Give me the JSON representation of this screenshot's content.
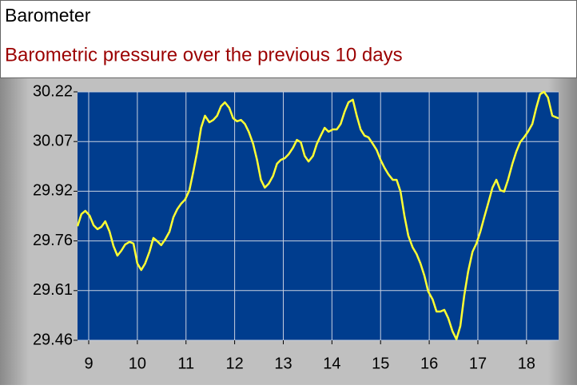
{
  "chart_data": {
    "type": "line",
    "title": "Barometer",
    "subtitle": "Barometric pressure over the previous 10 days",
    "x": [
      8.77,
      8.85,
      8.93,
      9.02,
      9.1,
      9.18,
      9.26,
      9.34,
      9.43,
      9.51,
      9.59,
      9.67,
      9.75,
      9.84,
      9.92,
      10.0,
      10.08,
      10.16,
      10.25,
      10.33,
      10.41,
      10.49,
      10.57,
      10.66,
      10.74,
      10.82,
      10.9,
      10.98,
      11.07,
      11.15,
      11.23,
      11.31,
      11.39,
      11.48,
      11.56,
      11.64,
      11.72,
      11.8,
      11.89,
      11.97,
      12.05,
      12.13,
      12.21,
      12.29,
      12.38,
      12.46,
      12.54,
      12.62,
      12.7,
      12.79,
      12.87,
      12.95,
      13.03,
      13.11,
      13.2,
      13.28,
      13.36,
      13.44,
      13.52,
      13.61,
      13.69,
      13.77,
      13.85,
      13.93,
      14.02,
      14.1,
      14.18,
      14.26,
      14.34,
      14.43,
      14.51,
      14.59,
      14.67,
      14.75,
      14.84,
      14.92,
      15.0,
      15.08,
      15.16,
      15.25,
      15.33,
      15.41,
      15.49,
      15.57,
      15.66,
      15.74,
      15.82,
      15.9,
      15.98,
      16.07,
      16.15,
      16.23,
      16.31,
      16.39,
      16.48,
      16.56,
      16.64,
      16.72,
      16.8,
      16.89,
      16.97,
      17.05,
      17.13,
      17.21,
      17.3,
      17.38,
      17.46,
      17.54,
      17.62,
      17.71,
      17.79,
      17.87,
      17.95,
      18.03,
      18.12,
      18.2,
      18.28,
      18.36,
      18.44,
      18.53,
      18.66
    ],
    "series": [
      {
        "color": "#ffff33",
        "values": [
          29.809,
          29.846,
          29.856,
          29.841,
          29.812,
          29.8,
          29.807,
          29.824,
          29.792,
          29.748,
          29.719,
          29.734,
          29.753,
          29.761,
          29.756,
          29.695,
          29.675,
          29.695,
          29.731,
          29.773,
          29.763,
          29.751,
          29.768,
          29.792,
          29.836,
          29.861,
          29.878,
          29.89,
          29.919,
          29.976,
          30.037,
          30.11,
          30.147,
          30.127,
          30.134,
          30.147,
          30.176,
          30.188,
          30.171,
          30.139,
          30.13,
          30.134,
          30.122,
          30.098,
          30.061,
          30.012,
          29.951,
          29.927,
          29.939,
          29.963,
          30.0,
          30.012,
          30.017,
          30.029,
          30.049,
          30.073,
          30.066,
          30.024,
          30.007,
          30.024,
          30.061,
          30.086,
          30.11,
          30.098,
          30.105,
          30.105,
          30.122,
          30.159,
          30.188,
          30.196,
          30.147,
          30.105,
          30.086,
          30.081,
          30.061,
          30.042,
          30.012,
          29.988,
          29.968,
          29.951,
          29.951,
          29.915,
          29.841,
          29.78,
          29.744,
          29.724,
          29.695,
          29.658,
          29.609,
          29.585,
          29.548,
          29.548,
          29.553,
          29.528,
          29.487,
          29.463,
          29.504,
          29.597,
          29.67,
          29.731,
          29.756,
          29.792,
          29.836,
          29.878,
          29.927,
          29.951,
          29.919,
          29.915,
          29.951,
          30.0,
          30.037,
          30.066,
          30.081,
          30.098,
          30.122,
          30.171,
          30.213,
          30.22,
          30.203,
          30.147,
          30.139
        ]
      }
    ],
    "xlim": [
      8.77,
      18.66
    ],
    "xticks": [
      9,
      10,
      11,
      12,
      13,
      14,
      15,
      16,
      17,
      18
    ],
    "ylim": [
      29.46,
      30.22
    ],
    "yticks": [
      29.46,
      {
        "value": 29.612,
        "label": "29.61"
      },
      {
        "value": 29.764,
        "label": "29.76"
      },
      {
        "value": 29.916,
        "label": "29.92"
      },
      {
        "value": 30.068,
        "label": "30.07"
      },
      30.22
    ],
    "grid": true,
    "background": "#003d8e"
  }
}
